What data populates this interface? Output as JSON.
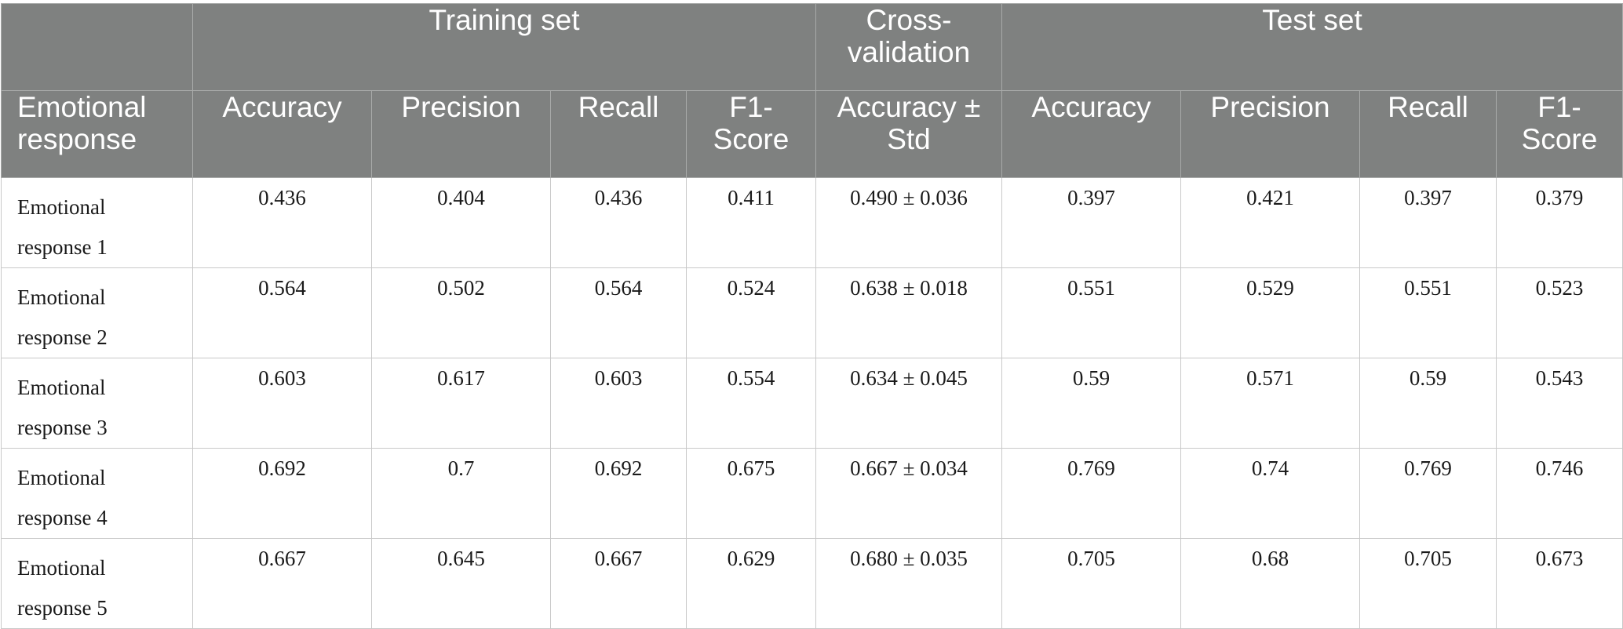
{
  "chart_data": {
    "type": "table",
    "group_headers": [
      "",
      "Training set",
      "Cross-validation",
      "Test set"
    ],
    "columns": [
      "Emotional response",
      "Accuracy",
      "Precision",
      "Recall",
      "F1-Score",
      "Accuracy ± Std",
      "Accuracy",
      "Precision",
      "Recall",
      "F1-Score"
    ],
    "rows": [
      [
        "Emotional response 1",
        "0.436",
        "0.404",
        "0.436",
        "0.411",
        "0.490 ± 0.036",
        "0.397",
        "0.421",
        "0.397",
        "0.379"
      ],
      [
        "Emotional response 2",
        "0.564",
        "0.502",
        "0.564",
        "0.524",
        "0.638 ± 0.018",
        "0.551",
        "0.529",
        "0.551",
        "0.523"
      ],
      [
        "Emotional response 3",
        "0.603",
        "0.617",
        "0.603",
        "0.554",
        "0.634 ± 0.045",
        "0.59",
        "0.571",
        "0.59",
        "0.543"
      ],
      [
        "Emotional response 4",
        "0.692",
        "0.7",
        "0.692",
        "0.675",
        "0.667 ± 0.034",
        "0.769",
        "0.74",
        "0.769",
        "0.746"
      ],
      [
        "Emotional response 5",
        "0.667",
        "0.645",
        "0.667",
        "0.629",
        "0.680 ± 0.035",
        "0.705",
        "0.68",
        "0.705",
        "0.673"
      ]
    ]
  },
  "colors": {
    "header_background": "#7f8180",
    "header_text": "#ffffff",
    "grid_line": "#c9c9c9",
    "body_text": "#1a1a1a"
  }
}
